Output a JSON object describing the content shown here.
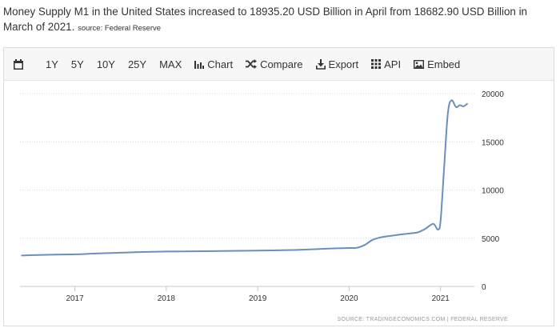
{
  "headline": {
    "text": "Money Supply M1 in the United States increased to 18935.20 USD Billion in April from 18682.90 USD Billion in March of 2021.",
    "source": "source: Federal Reserve"
  },
  "toolbar": {
    "range_buttons": [
      "1Y",
      "5Y",
      "10Y",
      "25Y",
      "MAX"
    ],
    "chart_label": "Chart",
    "compare_label": "Compare",
    "export_label": "Export",
    "api_label": "API",
    "embed_label": "Embed"
  },
  "colors": {
    "line": "#6a8fbe",
    "grid": "#d6d6d6"
  },
  "chart_data": {
    "type": "line",
    "title": "",
    "xlabel": "",
    "ylabel": "",
    "ylim": [
      0,
      20000
    ],
    "y_ticks": [
      0,
      5000,
      10000,
      15000,
      20000
    ],
    "y_tick_labels": [
      "0",
      "5000",
      "10000",
      "15000",
      "20000"
    ],
    "x_ticks": [
      2017,
      2018,
      2019,
      2020,
      2021
    ],
    "x_tick_labels": [
      "2017",
      "2018",
      "2019",
      "2020",
      "2021"
    ],
    "xlim": [
      2016.4,
      2021.37
    ],
    "series": [
      {
        "name": "Money Supply M1",
        "x": [
          2016.42,
          2016.6,
          2016.8,
          2017.0,
          2017.2,
          2017.4,
          2017.6,
          2017.8,
          2018.0,
          2018.2,
          2018.4,
          2018.6,
          2018.8,
          2019.0,
          2019.2,
          2019.4,
          2019.6,
          2019.8,
          2020.0,
          2020.08,
          2020.17,
          2020.25,
          2020.33,
          2020.42,
          2020.5,
          2020.58,
          2020.67,
          2020.75,
          2020.83,
          2020.92,
          2020.97,
          2021.0,
          2021.04,
          2021.08,
          2021.12,
          2021.17,
          2021.21,
          2021.25,
          2021.29
        ],
        "values": [
          3200,
          3260,
          3300,
          3330,
          3400,
          3470,
          3530,
          3580,
          3620,
          3630,
          3650,
          3670,
          3690,
          3720,
          3740,
          3780,
          3850,
          3930,
          3980,
          4000,
          4300,
          4800,
          5050,
          5200,
          5300,
          5400,
          5500,
          5600,
          5950,
          6500,
          5900,
          6800,
          12500,
          18000,
          19300,
          18600,
          18800,
          18683,
          18935
        ]
      }
    ]
  },
  "footer": {
    "source_label": "SOURCE: TRADINGECONOMICS.COM  |  FEDERAL RESERVE"
  }
}
